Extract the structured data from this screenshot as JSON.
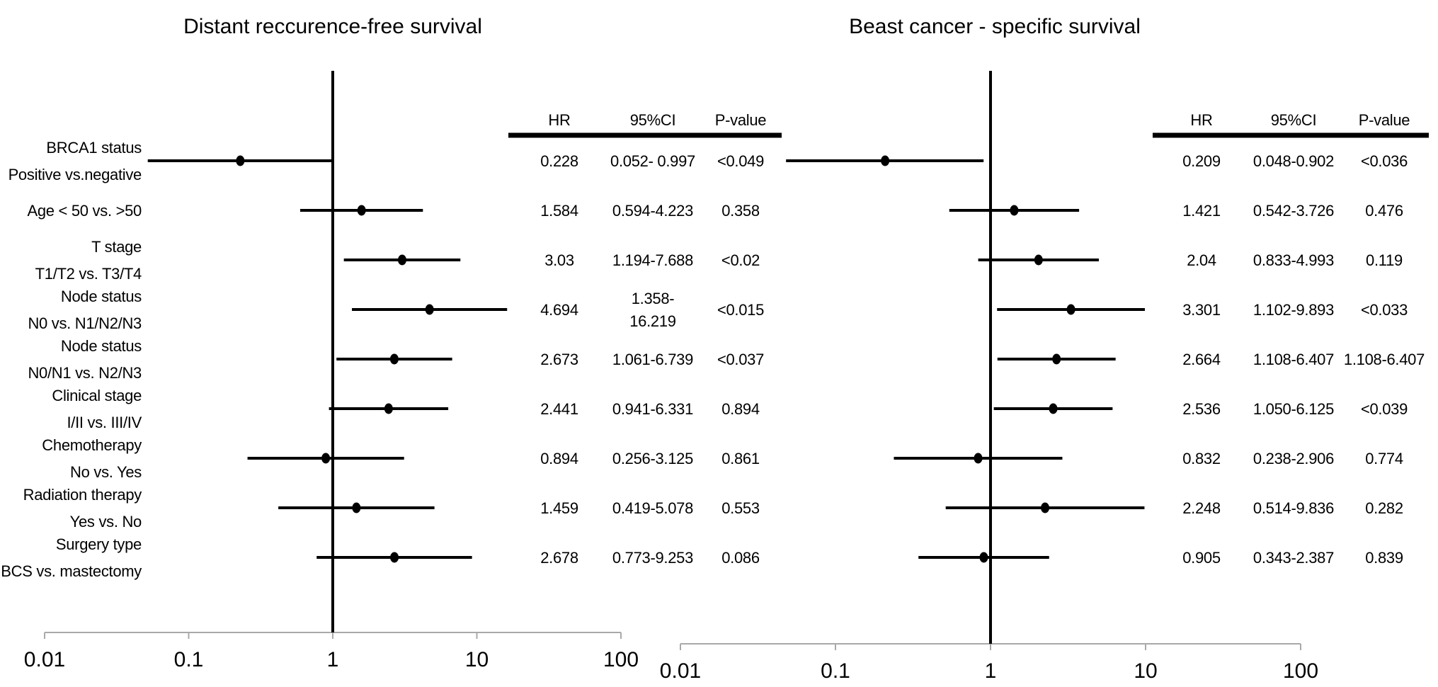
{
  "chart_data": [
    {
      "type": "forest",
      "title": "Distant reccurence-free survival",
      "columns": [
        "HR",
        "95%CI",
        "P-value"
      ],
      "axis": {
        "scale": "log",
        "ticks": [
          0.01,
          0.1,
          1,
          10,
          100
        ],
        "tick_labels": [
          "0.01",
          "0.1",
          "1",
          "10",
          "100"
        ],
        "reference_line": 1,
        "xlim": [
          0.01,
          100
        ],
        "grid": false
      },
      "rows": [
        {
          "label1": "BRCA1 status",
          "label2": "Positive vs.negative",
          "hr": 0.228,
          "ci_low": 0.052,
          "ci_high": 0.997,
          "hr_text": "0.228",
          "ci_text": "0.052- 0.997",
          "p_text": "<0.049"
        },
        {
          "label1": "Age < 50 vs. >50",
          "label2": "",
          "hr": 1.584,
          "ci_low": 0.594,
          "ci_high": 4.223,
          "hr_text": "1.584",
          "ci_text": "0.594-4.223",
          "p_text": "0.358"
        },
        {
          "label1": "T stage",
          "label2": "T1/T2 vs. T3/T4",
          "hr": 3.03,
          "ci_low": 1.194,
          "ci_high": 7.688,
          "hr_text": "3.03",
          "ci_text": "1.194-7.688",
          "p_text": "<0.02"
        },
        {
          "label1": "Node status",
          "label2": "N0 vs. N1/N2/N3",
          "hr": 4.694,
          "ci_low": 1.358,
          "ci_high": 16.219,
          "hr_text": "4.694",
          "ci_text": "1.358-\n16.219",
          "p_text": "<0.015"
        },
        {
          "label1": "Node status",
          "label2": "N0/N1 vs. N2/N3",
          "hr": 2.673,
          "ci_low": 1.061,
          "ci_high": 6.739,
          "hr_text": "2.673",
          "ci_text": "1.061-6.739",
          "p_text": "<0.037"
        },
        {
          "label1": "Clinical stage",
          "label2": "I/II vs. III/IV",
          "hr": 2.441,
          "ci_low": 0.941,
          "ci_high": 6.331,
          "hr_text": "2.441",
          "ci_text": "0.941-6.331",
          "p_text": "0.894"
        },
        {
          "label1": "Chemotherapy",
          "label2": "No vs. Yes",
          "hr": 0.894,
          "ci_low": 0.256,
          "ci_high": 3.125,
          "hr_text": "0.894",
          "ci_text": "0.256-3.125",
          "p_text": "0.861"
        },
        {
          "label1": "Radiation therapy",
          "label2": "Yes vs. No",
          "hr": 1.459,
          "ci_low": 0.419,
          "ci_high": 5.078,
          "hr_text": "1.459",
          "ci_text": "0.419-5.078",
          "p_text": "0.553"
        },
        {
          "label1": "Surgery type",
          "label2": "BCS vs. mastectomy",
          "hr": 2.678,
          "ci_low": 0.773,
          "ci_high": 9.253,
          "hr_text": "2.678",
          "ci_text": "0.773-9.253",
          "p_text": "0.086"
        }
      ]
    },
    {
      "type": "forest",
      "title": "Beast cancer - specific survival",
      "columns": [
        "HR",
        "95%CI",
        "P-value"
      ],
      "axis": {
        "scale": "log",
        "ticks": [
          0.01,
          0.1,
          1,
          10,
          100
        ],
        "tick_labels": [
          "0.01",
          "0.1",
          "1",
          "10",
          "100"
        ],
        "reference_line": 1,
        "xlim": [
          0.01,
          100
        ],
        "grid": false
      },
      "rows": [
        {
          "hr": 0.209,
          "ci_low": 0.048,
          "ci_high": 0.902,
          "hr_text": "0.209",
          "ci_text": "0.048-0.902",
          "p_text": "<0.036"
        },
        {
          "hr": 1.421,
          "ci_low": 0.542,
          "ci_high": 3.726,
          "hr_text": "1.421",
          "ci_text": "0.542-3.726",
          "p_text": "0.476"
        },
        {
          "hr": 2.04,
          "ci_low": 0.833,
          "ci_high": 4.993,
          "hr_text": "2.04",
          "ci_text": "0.833-4.993",
          "p_text": "0.119"
        },
        {
          "hr": 3.301,
          "ci_low": 1.102,
          "ci_high": 9.893,
          "hr_text": "3.301",
          "ci_text": "1.102-9.893",
          "p_text": "<0.033"
        },
        {
          "hr": 2.664,
          "ci_low": 1.108,
          "ci_high": 6.407,
          "hr_text": "2.664",
          "ci_text": "1.108-6.407",
          "p_text": "1.108-6.407"
        },
        {
          "hr": 2.536,
          "ci_low": 1.05,
          "ci_high": 6.125,
          "hr_text": "2.536",
          "ci_text": "1.050-6.125",
          "p_text": "<0.039"
        },
        {
          "hr": 0.832,
          "ci_low": 0.238,
          "ci_high": 2.906,
          "hr_text": "0.832",
          "ci_text": "0.238-2.906",
          "p_text": "0.774"
        },
        {
          "hr": 2.248,
          "ci_low": 0.514,
          "ci_high": 9.836,
          "hr_text": "2.248",
          "ci_text": "0.514-9.836",
          "p_text": "0.282"
        },
        {
          "hr": 0.905,
          "ci_low": 0.343,
          "ci_high": 2.387,
          "hr_text": "0.905",
          "ci_text": "0.343-2.387",
          "p_text": "0.839"
        }
      ]
    }
  ]
}
